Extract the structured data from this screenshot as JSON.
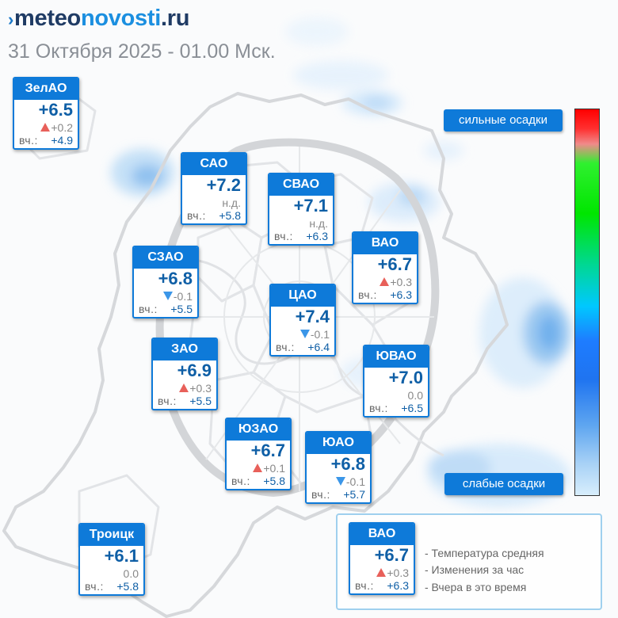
{
  "header": {
    "logo_parts": [
      "meteo",
      "novosti",
      ".ru"
    ],
    "subtitle": "31 Октября 2025 - 01.00 Мск."
  },
  "scale": {
    "top_label": "сильные осадки",
    "bottom_label": "слабые осадки"
  },
  "districts": [
    {
      "name": "ЗелАО",
      "temp": "+6.5",
      "change": "+0.2",
      "trend": "up",
      "yesterday_label": "вч.:",
      "yesterday": "+4.9"
    },
    {
      "name": "САО",
      "temp": "+7.2",
      "change": "н.д.",
      "trend": "none",
      "yesterday_label": "вч.:",
      "yesterday": "+5.8"
    },
    {
      "name": "СВАО",
      "temp": "+7.1",
      "change": "н.д.",
      "trend": "none",
      "yesterday_label": "вч.:",
      "yesterday": "+6.3"
    },
    {
      "name": "ВАО",
      "temp": "+6.7",
      "change": "+0.3",
      "trend": "up",
      "yesterday_label": "вч.:",
      "yesterday": "+6.3"
    },
    {
      "name": "СЗАО",
      "temp": "+6.8",
      "change": "-0.1",
      "trend": "down",
      "yesterday_label": "вч.:",
      "yesterday": "+5.5"
    },
    {
      "name": "ЦАО",
      "temp": "+7.4",
      "change": "-0.1",
      "trend": "down",
      "yesterday_label": "вч.:",
      "yesterday": "+6.4"
    },
    {
      "name": "ЗАО",
      "temp": "+6.9",
      "change": "+0.3",
      "trend": "up",
      "yesterday_label": "вч.:",
      "yesterday": "+5.5"
    },
    {
      "name": "ЮВАО",
      "temp": "+7.0",
      "change": "0.0",
      "trend": "none",
      "yesterday_label": "вч.:",
      "yesterday": "+6.5"
    },
    {
      "name": "ЮЗАО",
      "temp": "+6.7",
      "change": "+0.1",
      "trend": "up",
      "yesterday_label": "вч.:",
      "yesterday": "+5.8"
    },
    {
      "name": "ЮАО",
      "temp": "+6.8",
      "change": "-0.1",
      "trend": "down",
      "yesterday_label": "вч.:",
      "yesterday": "+5.7"
    },
    {
      "name": "Троицк",
      "temp": "+6.1",
      "change": "0.0",
      "trend": "none",
      "yesterday_label": "вч.:",
      "yesterday": "+5.8"
    }
  ],
  "legend": {
    "sample": {
      "name": "ВАО",
      "temp": "+6.7",
      "change": "+0.3",
      "trend": "up",
      "yesterday_label": "вч.:",
      "yesterday": "+6.3"
    },
    "items": [
      "- Температура средняя",
      "- Изменения за час",
      "- Вчера в это время"
    ]
  },
  "colors": {
    "card_header": "#0e7ad9",
    "temp_text": "#0f5fa6",
    "trend_up": "#e8605a",
    "trend_down": "#3b96e8",
    "precip_light": "#cfe6fb",
    "precip_strong": "#ff0000"
  }
}
